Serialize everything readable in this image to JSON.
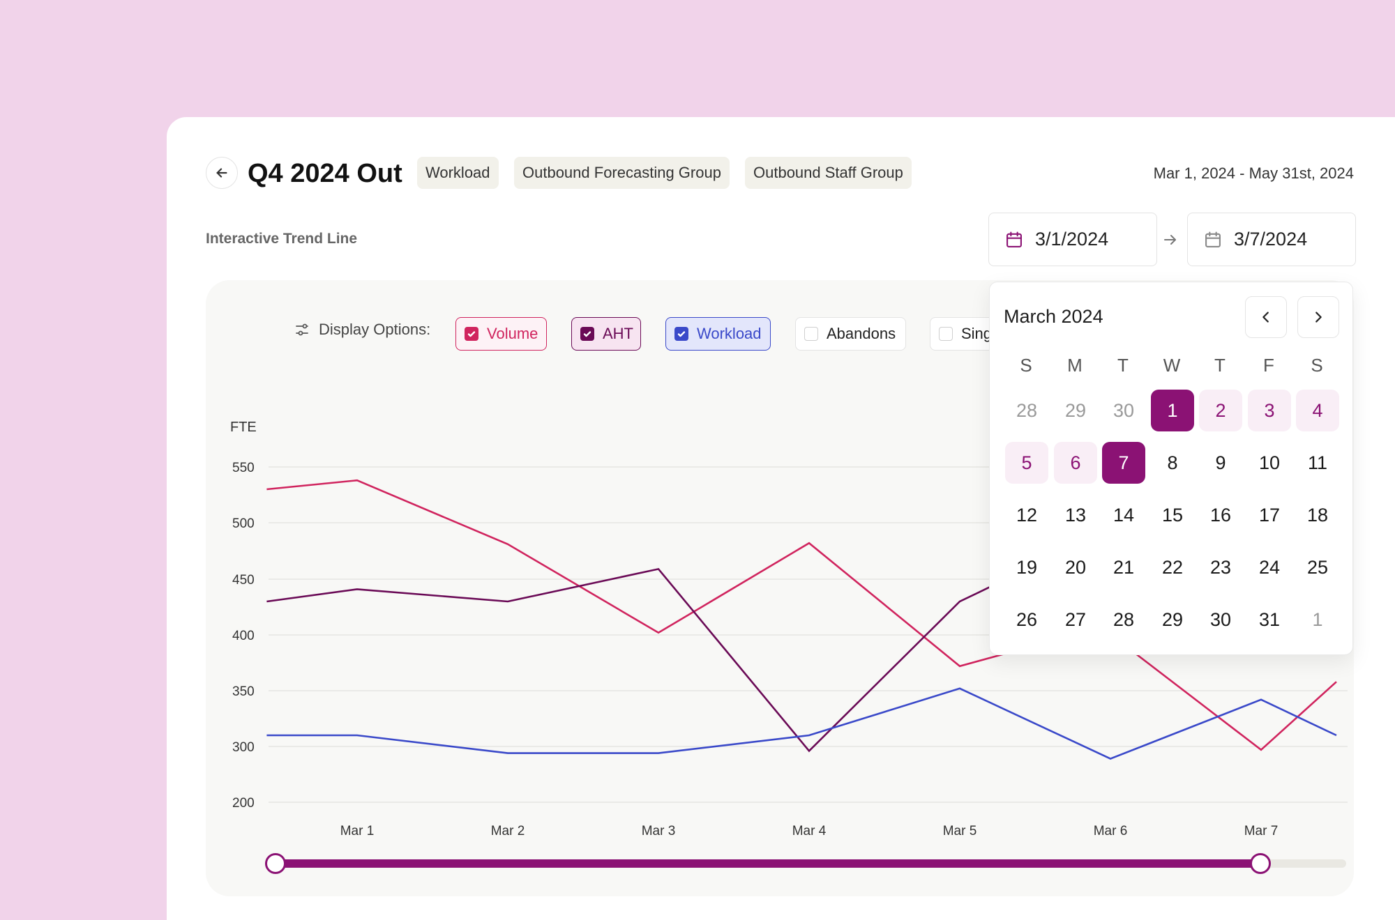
{
  "header": {
    "title": "Q4 2024 Out",
    "tags": [
      "Workload",
      "Outbound Forecasting Group",
      "Outbound Staff Group"
    ],
    "date_range": "Mar 1, 2024 - May 31st, 2024"
  },
  "section_label": "Interactive Trend Line",
  "date_inputs": {
    "start": "3/1/2024",
    "end": "3/7/2024"
  },
  "display_options": {
    "label": "Display Options:",
    "options": [
      {
        "label": "Volume",
        "checked": true,
        "color": "#d0245e"
      },
      {
        "label": "AHT",
        "checked": true,
        "color": "#6a0a56"
      },
      {
        "label": "Workload",
        "checked": true,
        "color": "#3a49c9"
      },
      {
        "label": "Abandons",
        "checked": false
      },
      {
        "label": "Sing",
        "checked": false
      }
    ]
  },
  "chart_data": {
    "type": "line",
    "ylabel": "FTE",
    "y_ticks": [
      "550",
      "500",
      "450",
      "400",
      "350",
      "300",
      "200"
    ],
    "categories": [
      "Mar 1",
      "Mar 2",
      "Mar 3",
      "Mar 4",
      "Mar 5",
      "Mar 6",
      "Mar 7"
    ],
    "series": [
      {
        "name": "Volume",
        "color": "#d0245e",
        "points": [
          [
            0.4,
            530
          ],
          [
            1.0,
            538
          ],
          [
            2.0,
            481
          ],
          [
            3.0,
            402
          ],
          [
            4.0,
            482
          ],
          [
            5.0,
            372
          ],
          [
            5.35,
            385
          ],
          [
            6.15,
            385
          ],
          [
            7.0,
            294
          ],
          [
            7.5,
            358
          ]
        ]
      },
      {
        "name": "AHT",
        "color": "#6a0a56",
        "points": [
          [
            0.4,
            430
          ],
          [
            1.0,
            441
          ],
          [
            2.0,
            430
          ],
          [
            3.0,
            459
          ],
          [
            4.0,
            292
          ],
          [
            5.0,
            430
          ],
          [
            5.2,
            443
          ]
        ]
      },
      {
        "name": "Workload",
        "color": "#3a49c9",
        "points": [
          [
            0.4,
            310
          ],
          [
            1.0,
            310
          ],
          [
            2.0,
            288
          ],
          [
            3.0,
            288
          ],
          [
            4.0,
            310
          ],
          [
            5.0,
            352
          ],
          [
            6.0,
            278
          ],
          [
            7.0,
            342
          ],
          [
            7.5,
            310
          ]
        ]
      }
    ]
  },
  "slider": {
    "start": 0.0,
    "end": 0.92
  },
  "calendar": {
    "title": "March 2024",
    "weekdays": [
      "S",
      "M",
      "T",
      "W",
      "T",
      "F",
      "S"
    ],
    "weeks": [
      [
        {
          "d": "28",
          "s": "muted"
        },
        {
          "d": "29",
          "s": "muted"
        },
        {
          "d": "30",
          "s": "muted"
        },
        {
          "d": "1",
          "s": "selected"
        },
        {
          "d": "2",
          "s": "range"
        },
        {
          "d": "3",
          "s": "range"
        },
        {
          "d": "4",
          "s": "range"
        }
      ],
      [
        {
          "d": "5",
          "s": "range"
        },
        {
          "d": "6",
          "s": "range"
        },
        {
          "d": "7",
          "s": "selected"
        },
        {
          "d": "8",
          "s": ""
        },
        {
          "d": "9",
          "s": ""
        },
        {
          "d": "10",
          "s": ""
        },
        {
          "d": "11",
          "s": ""
        }
      ],
      [
        {
          "d": "12",
          "s": ""
        },
        {
          "d": "13",
          "s": ""
        },
        {
          "d": "14",
          "s": ""
        },
        {
          "d": "15",
          "s": ""
        },
        {
          "d": "16",
          "s": ""
        },
        {
          "d": "17",
          "s": ""
        },
        {
          "d": "18",
          "s": ""
        }
      ],
      [
        {
          "d": "19",
          "s": ""
        },
        {
          "d": "20",
          "s": ""
        },
        {
          "d": "21",
          "s": ""
        },
        {
          "d": "22",
          "s": ""
        },
        {
          "d": "23",
          "s": ""
        },
        {
          "d": "24",
          "s": ""
        },
        {
          "d": "25",
          "s": ""
        }
      ],
      [
        {
          "d": "26",
          "s": ""
        },
        {
          "d": "27",
          "s": ""
        },
        {
          "d": "28",
          "s": ""
        },
        {
          "d": "29",
          "s": ""
        },
        {
          "d": "30",
          "s": ""
        },
        {
          "d": "31",
          "s": ""
        },
        {
          "d": "1",
          "s": "muted"
        }
      ]
    ]
  },
  "colors": {
    "accent": "#8b1274",
    "background": "#f1d3ea"
  }
}
